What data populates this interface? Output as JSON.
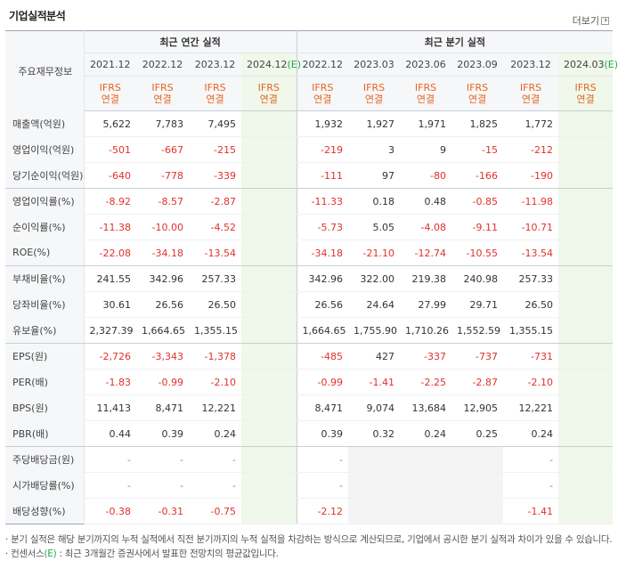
{
  "header": {
    "title": "기업실적분석",
    "more_label": "더보기"
  },
  "table": {
    "row_header_label": "주요재무정보",
    "annual_group_label": "최근 연간 실적",
    "quarter_group_label": "최근 분기 실적",
    "annual_periods": [
      "2021.12",
      "2022.12",
      "2023.12",
      "2024.12"
    ],
    "quarter_periods": [
      "2022.12",
      "2023.03",
      "2023.06",
      "2023.09",
      "2023.12",
      "2024.03"
    ],
    "estimate_mark": "(E)",
    "basis_line1": "IFRS",
    "basis_line2": "연결",
    "rows": [
      {
        "label": "매출액(억원)",
        "values": [
          "5,622",
          "7,783",
          "7,495",
          "",
          "1,932",
          "1,927",
          "1,971",
          "1,825",
          "1,772",
          ""
        ]
      },
      {
        "label": "영업이익(억원)",
        "values": [
          "-501",
          "-667",
          "-215",
          "",
          "-219",
          "3",
          "9",
          "-15",
          "-212",
          ""
        ]
      },
      {
        "label": "당기순이익(억원)",
        "values": [
          "-640",
          "-778",
          "-339",
          "",
          "-111",
          "97",
          "-80",
          "-166",
          "-190",
          ""
        ]
      },
      {
        "label": "영업이익률(%)",
        "values": [
          "-8.92",
          "-8.57",
          "-2.87",
          "",
          "-11.33",
          "0.18",
          "0.48",
          "-0.85",
          "-11.98",
          ""
        ]
      },
      {
        "label": "순이익률(%)",
        "values": [
          "-11.38",
          "-10.00",
          "-4.52",
          "",
          "-5.73",
          "5.05",
          "-4.08",
          "-9.11",
          "-10.71",
          ""
        ]
      },
      {
        "label": "ROE(%)",
        "values": [
          "-22.08",
          "-34.18",
          "-13.54",
          "",
          "-34.18",
          "-21.10",
          "-12.74",
          "-10.55",
          "-13.54",
          ""
        ]
      },
      {
        "label": "부채비율(%)",
        "values": [
          "241.55",
          "342.96",
          "257.33",
          "",
          "342.96",
          "322.00",
          "219.38",
          "240.98",
          "257.33",
          ""
        ]
      },
      {
        "label": "당좌비율(%)",
        "values": [
          "30.61",
          "26.56",
          "26.50",
          "",
          "26.56",
          "24.64",
          "27.99",
          "29.71",
          "26.50",
          ""
        ]
      },
      {
        "label": "유보율(%)",
        "values": [
          "2,327.39",
          "1,664.65",
          "1,355.15",
          "",
          "1,664.65",
          "1,755.90",
          "1,710.26",
          "1,552.59",
          "1,355.15",
          ""
        ]
      },
      {
        "label": "EPS(원)",
        "values": [
          "-2,726",
          "-3,343",
          "-1,378",
          "",
          "-485",
          "427",
          "-337",
          "-737",
          "-731",
          ""
        ]
      },
      {
        "label": "PER(배)",
        "values": [
          "-1.83",
          "-0.99",
          "-2.10",
          "",
          "-0.99",
          "-1.41",
          "-2.25",
          "-2.87",
          "-2.10",
          ""
        ]
      },
      {
        "label": "BPS(원)",
        "values": [
          "11,413",
          "8,471",
          "12,221",
          "",
          "8,471",
          "9,074",
          "13,684",
          "12,905",
          "12,221",
          ""
        ]
      },
      {
        "label": "PBR(배)",
        "values": [
          "0.44",
          "0.39",
          "0.24",
          "",
          "0.39",
          "0.32",
          "0.24",
          "0.25",
          "0.24",
          ""
        ]
      },
      {
        "label": "주당배당금(원)",
        "values": [
          "-",
          "-",
          "-",
          "",
          "-",
          "",
          "",
          "",
          "-",
          ""
        ]
      },
      {
        "label": "시가배당률(%)",
        "values": [
          "-",
          "-",
          "-",
          "",
          "-",
          "",
          "",
          "",
          "-",
          ""
        ]
      },
      {
        "label": "배당성향(%)",
        "values": [
          "-0.38",
          "-0.31",
          "-0.75",
          "",
          "-2.12",
          "",
          "",
          "",
          "-1.41",
          ""
        ]
      }
    ]
  },
  "notes": {
    "line1": "· 분기 실적은 해당 분기까지의 누적 실적에서 직전 분기까지의 누적 실적을 차감하는 방식으로 계산되므로, 기업에서 공시한 분기 실적과 차이가 있을 수 있습니다.",
    "line2_prefix": "· 컨센서스",
    "line2_mark": "(E)",
    "line2_suffix": " : 최근 3개월간 증권사에서 발표한 전망치의 평균값입니다."
  },
  "colors": {
    "negative": "#e0322c",
    "ifrs": "#e8651f",
    "estimate": "#24a84b",
    "estimate_bg": "#eff8ea"
  }
}
